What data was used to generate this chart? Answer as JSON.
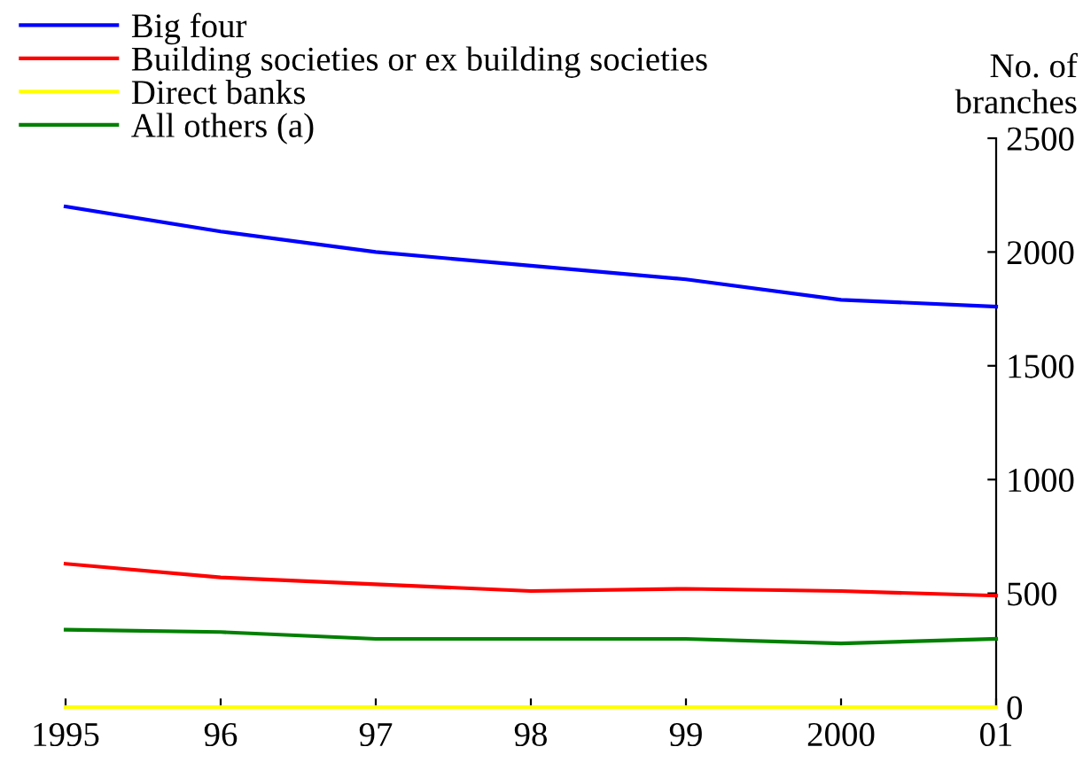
{
  "chart_data": {
    "type": "line",
    "ylabel": "No. of\nbranches",
    "categories": [
      "1995",
      "96",
      "97",
      "98",
      "99",
      "2000",
      "01"
    ],
    "series": [
      {
        "name": "Big four",
        "color": "#0000ff",
        "values": [
          2200,
          2090,
          2000,
          1940,
          1880,
          1790,
          1760
        ]
      },
      {
        "name": "Building societies or ex building societies",
        "color": "#ff0000",
        "values": [
          630,
          570,
          540,
          510,
          520,
          510,
          490
        ]
      },
      {
        "name": "Direct banks",
        "color": "#ffff00",
        "values": [
          0,
          0,
          0,
          0,
          0,
          0,
          0
        ]
      },
      {
        "name": "All others (a)",
        "color": "#008000",
        "values": [
          340,
          330,
          300,
          300,
          300,
          280,
          300
        ]
      }
    ],
    "ylim": [
      0,
      2500
    ],
    "yticks": [
      0,
      500,
      1000,
      1500,
      2000,
      2500
    ],
    "grid": false,
    "legend": "top left",
    "marker": "none",
    "line_style": "solid"
  }
}
